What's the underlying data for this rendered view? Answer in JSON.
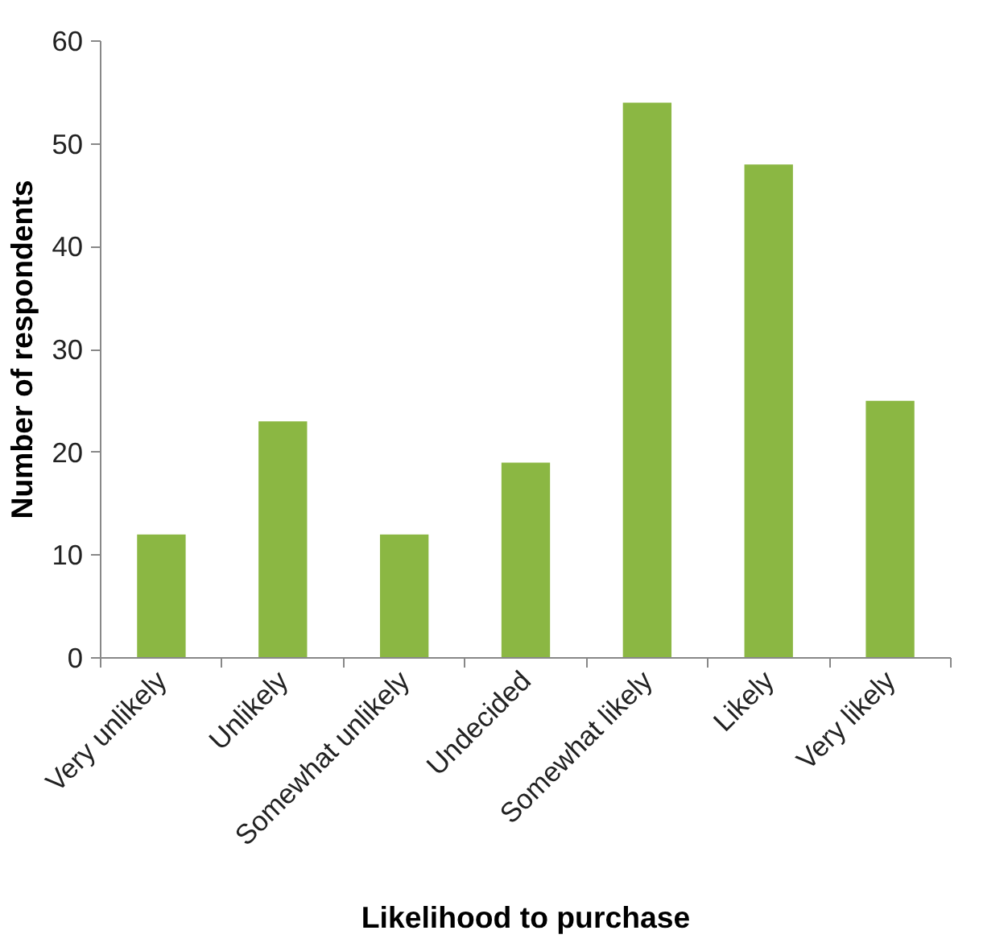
{
  "chart_data": {
    "type": "bar",
    "xlabel": "Likelihood to purchase",
    "ylabel": "Number of respondents",
    "categories": [
      "Very unlikely",
      "Unlikely",
      "Somewhat unlikely",
      "Undecided",
      "Somewhat likely",
      "Likely",
      "Very likely"
    ],
    "values": [
      12,
      23,
      12,
      19,
      54,
      48,
      25
    ],
    "color": "#8bb743",
    "ylim": [
      0,
      60
    ],
    "yticks": [
      0,
      10,
      20,
      30,
      40,
      50,
      60
    ],
    "grid": false
  }
}
